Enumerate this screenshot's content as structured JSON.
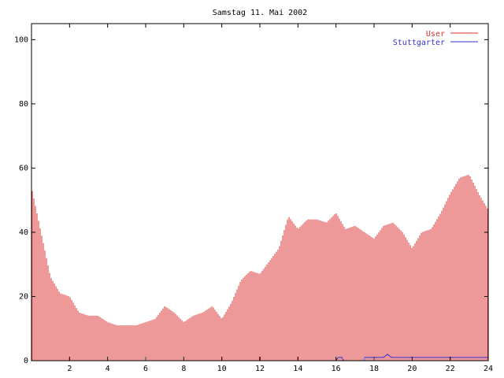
{
  "chart_data": {
    "type": "bar",
    "title": "Samstag 11. Mai 2002",
    "xlabel": "",
    "ylabel": "",
    "xlim": [
      0,
      24
    ],
    "ylim": [
      0,
      105
    ],
    "xticks": [
      2,
      4,
      6,
      8,
      10,
      12,
      14,
      16,
      18,
      20,
      22,
      24
    ],
    "yticks": [
      0,
      20,
      40,
      60,
      80,
      100
    ],
    "grid": false,
    "legend_position": "top-right",
    "colors": {
      "User": "#dd3333",
      "Stuttgarter": "#3333cc"
    },
    "series": [
      {
        "name": "User",
        "style": "impulses",
        "x": [
          0,
          0.5,
          1,
          1.5,
          2,
          2.5,
          3,
          3.5,
          4,
          4.5,
          5,
          5.5,
          6,
          6.5,
          7,
          7.5,
          8,
          8.5,
          9,
          9.5,
          10,
          10.5,
          11,
          11.5,
          12,
          12.5,
          13,
          13.5,
          14,
          14.5,
          15,
          15.5,
          16,
          16.5,
          17,
          17.5,
          18,
          18.5,
          19,
          19.5,
          20,
          20.5,
          21,
          21.5,
          22,
          22.5,
          23,
          23.5,
          24
        ],
        "values": [
          54,
          40,
          26,
          21,
          20,
          15,
          14,
          14,
          12,
          11,
          11,
          11,
          12,
          13,
          17,
          15,
          12,
          14,
          15,
          17,
          13,
          18,
          25,
          28,
          27,
          31,
          35,
          45,
          41,
          44,
          44,
          43,
          46,
          41,
          42,
          40,
          38,
          42,
          43,
          40,
          35,
          40,
          41,
          46,
          52,
          57,
          58,
          52,
          47
        ]
      },
      {
        "name": "Stuttgarter",
        "style": "lines",
        "x": [
          0,
          16.0,
          16.1,
          16.3,
          16.4,
          17.5,
          17.5,
          18.5,
          18.7,
          18.9,
          20.9,
          21,
          24
        ],
        "values": [
          0,
          0,
          1,
          1,
          0,
          0,
          1,
          1,
          2,
          1,
          1,
          1,
          1
        ]
      }
    ]
  }
}
